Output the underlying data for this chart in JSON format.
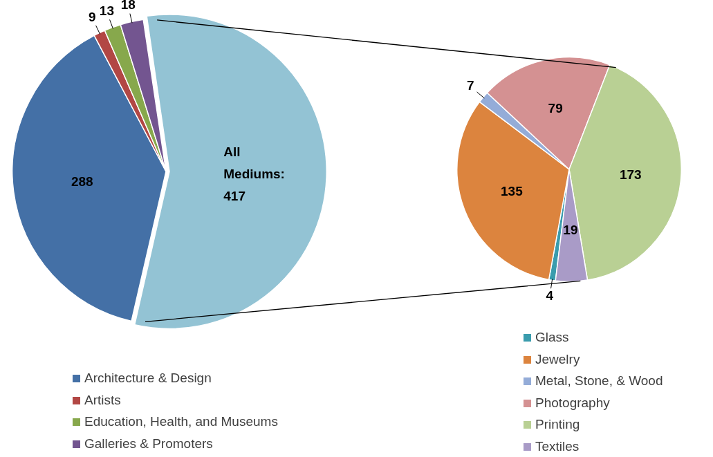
{
  "chart_data": [
    {
      "type": "pie",
      "categories": [
        "Architecture & Design",
        "Artists",
        "Education, Health, and Museums",
        "Galleries & Promoters",
        null
      ],
      "values": [
        288,
        9,
        13,
        18,
        417
      ],
      "colors": [
        "#4470a6",
        "#b24744",
        "#87a84c",
        "#735590",
        "#93c3d4"
      ],
      "value_labels": [
        "288",
        "9",
        "13",
        "18",
        "All Mediums: 417"
      ],
      "legend": "bottom"
    },
    {
      "type": "pie",
      "categories": [
        "Glass",
        "Jewelry",
        "Metal, Stone, & Wood",
        "Photography",
        "Printing",
        "Textiles"
      ],
      "values": [
        4,
        135,
        7,
        79,
        173,
        19
      ],
      "colors": [
        "#3a9cad",
        "#dc843e",
        "#94acd8",
        "#d49192",
        "#b9d094",
        "#a99bc7"
      ],
      "data_labels": true,
      "legend": "bottom"
    }
  ]
}
